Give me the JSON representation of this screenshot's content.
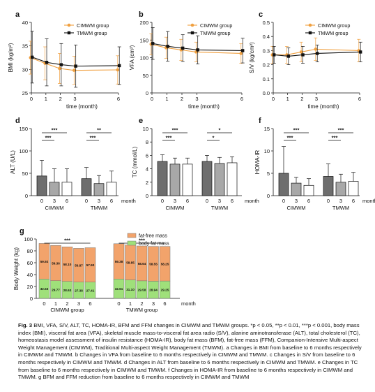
{
  "colors": {
    "cimwm": "#f0a040",
    "tmwm": "#111111",
    "bar_dark": "#6e6e6e",
    "bar_mid": "#a8a8a8",
    "bar_white": "#ffffff",
    "fat_free": "#f2a36b",
    "body_fat": "#9fe07a"
  },
  "chart_data": [
    {
      "id": "a",
      "type": "line",
      "panel_label": "a",
      "xlabel": "time (month)",
      "ylabel": "BMI (kg/m²)",
      "ylim": [
        25,
        40
      ],
      "yticks": [
        25,
        30,
        35,
        40
      ],
      "xticks": [
        0,
        1,
        2,
        3,
        6
      ],
      "legend": "top-right",
      "series": [
        {
          "name": "CIMWM group",
          "x": [
            0,
            1,
            2,
            3,
            6
          ],
          "y": [
            32.5,
            31.3,
            30.2,
            29.8,
            29.9
          ],
          "err": [
            3.5,
            3.5,
            3.2,
            3.0,
            3.0
          ]
        },
        {
          "name": "TMWM group",
          "x": [
            0,
            1,
            2,
            3,
            6
          ],
          "y": [
            32.6,
            31.5,
            31.0,
            30.7,
            30.8
          ],
          "err": [
            5.5,
            5.0,
            4.5,
            4.5,
            4.0
          ]
        }
      ]
    },
    {
      "id": "b",
      "type": "line",
      "panel_label": "b",
      "xlabel": "time (month)",
      "ylabel": "VFA (cm²)",
      "ylim": [
        0,
        200
      ],
      "yticks": [
        0,
        50,
        100,
        150,
        200
      ],
      "xticks": [
        0,
        1,
        2,
        3,
        6
      ],
      "legend": "top-right",
      "series": [
        {
          "name": "CIMWM group",
          "x": [
            0,
            1,
            2,
            3,
            6
          ],
          "y": [
            138,
            128,
            122,
            116,
            112
          ],
          "err": [
            30,
            30,
            30,
            28,
            28
          ]
        },
        {
          "name": "TMWM group",
          "x": [
            0,
            1,
            2,
            3,
            6
          ],
          "y": [
            140,
            132,
            127,
            122,
            120
          ],
          "err": [
            45,
            42,
            38,
            40,
            35
          ]
        }
      ]
    },
    {
      "id": "c",
      "type": "line",
      "panel_label": "c",
      "xlabel": "time (month)",
      "ylabel": "S/V (kg/cm²)",
      "ylim": [
        0,
        0.5
      ],
      "yticks": [
        0.0,
        0.1,
        0.2,
        0.3,
        0.4,
        0.5
      ],
      "xticks": [
        0,
        1,
        2,
        3,
        6
      ],
      "legend": "top-right",
      "series": [
        {
          "name": "CIMWM group",
          "x": [
            0,
            1,
            2,
            3,
            6
          ],
          "y": [
            0.27,
            0.27,
            0.29,
            0.31,
            0.3
          ],
          "err": [
            0.06,
            0.06,
            0.07,
            0.08,
            0.08
          ]
        },
        {
          "name": "TMWM group",
          "x": [
            0,
            1,
            2,
            3,
            6
          ],
          "y": [
            0.27,
            0.26,
            0.27,
            0.28,
            0.29
          ],
          "err": [
            0.06,
            0.06,
            0.06,
            0.06,
            0.07
          ]
        }
      ]
    },
    {
      "id": "d",
      "type": "bar",
      "panel_label": "d",
      "ylabel": "ALT (U/L)",
      "xlabel": "month",
      "ylim": [
        0,
        150
      ],
      "yticks": [
        0,
        50,
        100,
        150
      ],
      "groups": [
        "CIMWM",
        "TMWM"
      ],
      "categories": [
        "0",
        "3",
        "6"
      ],
      "values": [
        [
          44,
          30,
          30
        ],
        [
          38,
          27,
          30
        ]
      ],
      "errors": [
        [
          35,
          30,
          30
        ],
        [
          25,
          18,
          25
        ]
      ],
      "significance": [
        {
          "group": 0,
          "from": 0,
          "to": 2,
          "label": "***"
        },
        {
          "group": 0,
          "from": 0,
          "to": 1,
          "label": "***"
        },
        {
          "group": 1,
          "from": 0,
          "to": 2,
          "label": "**"
        },
        {
          "group": 1,
          "from": 0,
          "to": 1,
          "label": "***"
        }
      ]
    },
    {
      "id": "e",
      "type": "bar",
      "panel_label": "e",
      "ylabel": "TC (mmol/L)",
      "xlabel": "month",
      "ylim": [
        0,
        10
      ],
      "yticks": [
        0,
        2,
        4,
        6,
        8,
        10
      ],
      "groups": [
        "CIMWM",
        "TMWM"
      ],
      "categories": [
        "0",
        "3",
        "6"
      ],
      "values": [
        [
          5.1,
          4.7,
          4.7
        ],
        [
          5.1,
          4.8,
          4.9
        ]
      ],
      "errors": [
        [
          1.0,
          0.9,
          0.9
        ],
        [
          0.9,
          0.9,
          0.9
        ]
      ],
      "significance": [
        {
          "group": 0,
          "from": 0,
          "to": 2,
          "label": "***"
        },
        {
          "group": 0,
          "from": 0,
          "to": 1,
          "label": "***"
        },
        {
          "group": 1,
          "from": 0,
          "to": 2,
          "label": "*"
        },
        {
          "group": 1,
          "from": 0,
          "to": 1,
          "label": "*"
        }
      ]
    },
    {
      "id": "f",
      "type": "bar",
      "panel_label": "f",
      "ylabel": "HOMA-IR",
      "xlabel": "month",
      "ylim": [
        0,
        15
      ],
      "yticks": [
        0,
        5,
        10,
        15
      ],
      "groups": [
        "CIMWM",
        "TMWM"
      ],
      "categories": [
        "0",
        "3",
        "6"
      ],
      "values": [
        [
          5.0,
          2.8,
          2.3
        ],
        [
          4.3,
          3.0,
          3.2
        ]
      ],
      "errors": [
        [
          6.0,
          1.3,
          1.5
        ],
        [
          2.8,
          1.8,
          2.0
        ]
      ],
      "significance": [
        {
          "group": 0,
          "from": 0,
          "to": 2,
          "label": "***"
        },
        {
          "group": 0,
          "from": 0,
          "to": 1,
          "label": "***"
        },
        {
          "group": 1,
          "from": 0,
          "to": 2,
          "label": "***"
        },
        {
          "group": 1,
          "from": 0,
          "to": 1,
          "label": "***"
        }
      ]
    },
    {
      "id": "g",
      "type": "stacked-bar",
      "panel_label": "g",
      "ylabel": "Body Weight (kg)",
      "xlabel": "month",
      "ylim": [
        0,
        100
      ],
      "yticks": [
        0,
        20,
        40,
        60,
        80,
        100
      ],
      "groups": [
        "CIMWM group",
        "TMWM group"
      ],
      "categories": [
        "0",
        "1",
        "2",
        "3",
        "6"
      ],
      "legend_entries": [
        "fat-free mass",
        "body fat mass"
      ],
      "fat_mass": [
        [
          32.53,
          29.77,
          28.63,
          27.38,
          27.41
        ],
        [
          32.61,
          31.1,
          29.58,
          28.94,
          29.25
        ]
      ],
      "fat_free_mass": [
        [
          59.92,
          59.36,
          58.1,
          56.87,
          57.9
        ],
        [
          59.38,
          58.85,
          58.64,
          58.55,
          58.25
        ]
      ],
      "fat_mass_labels": [
        [
          "32.53",
          "29.77",
          "28.63",
          "27.38",
          "27.41"
        ],
        [
          "32.61",
          "31.10",
          "29.58",
          "28.94",
          "29.25"
        ]
      ],
      "fat_free_labels": [
        [
          "59.92",
          "59.36",
          "58.10",
          "56.87",
          "57.90"
        ],
        [
          "59.38",
          "58.85",
          "58.64",
          "58.55",
          "58.25"
        ]
      ],
      "significance": [
        {
          "group": 0,
          "label": "***"
        },
        {
          "group": 1,
          "label": "***"
        }
      ]
    }
  ],
  "caption": {
    "label": "Fig. 3",
    "text": "BMI, VFA, S/V, ALT, TC, HOMA-IR, BFM and FFM changes in CIMWM and TMWM groups. *p < 0.05, **p < 0.01, ***p < 0.001, body mass index (BMI), visceral fat area (VFA), skeletal muscle mass-to-visceral fat area radio (S/V), alanine aminotransferase (ALT), total cholesterol (TC), homeostasis model assessment of insulin resistance (HOMA-IR), body fat mass (BFM), fat-free mass (FFM), Companion-Intensive Multi-aspect Weight Management (CIMWM), Traditional Multi-aspect Weight Management (TMWM). a Changes in BMI from baseline to 6 months respectively in CIMWM and TMWM. b Changes in VFA from baseline to 6 months respectively in CIMWM and TMWM. c Changes in S/V from baseline to 6 months respectively in CIMWM and TMWM. d Changes in ALT from baseline to 6 months respectively in CIMWM and TMWM. e Changes in TC from baseline to 6 months respectively in CIMWM and TMWM. f Changes in HOMA-IR from baseline to 6 months respectively in CIMWM and TMWM. g BFM and FFM reduction from baseline to 6 months respectively in CIMWM and TMWM"
  }
}
